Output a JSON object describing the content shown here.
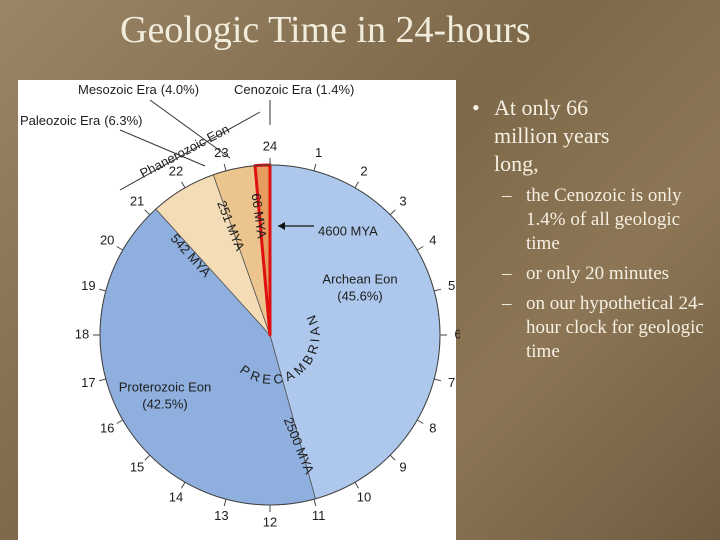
{
  "title": "Geologic Time in 24-hours",
  "chart_data": {
    "type": "pie",
    "categories": [
      "Archean Eon",
      "Proterozoic Eon",
      "Paleozoic Era",
      "Mesozoic Era",
      "Cenozoic Era"
    ],
    "values": [
      45.6,
      42.5,
      6.3,
      4.0,
      1.4
    ],
    "value_labels": [
      "(45.6%)",
      "(42.5%)",
      "(6.3%)",
      "(4.0%)",
      "(1.4%)"
    ],
    "colors": [
      "#adc8ec",
      "#8fb0df",
      "#f3dcb6",
      "#ebc48e",
      "#e59a5e"
    ],
    "clock_ticks": [
      1,
      2,
      3,
      4,
      5,
      6,
      7,
      8,
      9,
      10,
      11,
      12,
      13,
      14,
      15,
      16,
      17,
      18,
      19,
      20,
      21,
      22,
      23,
      24
    ],
    "annotations": [
      "Phanerozoic Eon",
      "4600 MYA",
      "2500 MYA",
      "542 MYA",
      "251 MYA",
      "66 MYA",
      "PRECAMBRIAN"
    ]
  },
  "bullets": [
    {
      "text": "At only 66 million years long,",
      "sub": [
        "the Cenozoic is only 1.4% of all geologic time",
        "or only 20 minutes",
        "on our hypothetical 24-hour clock for geologic time"
      ]
    }
  ]
}
